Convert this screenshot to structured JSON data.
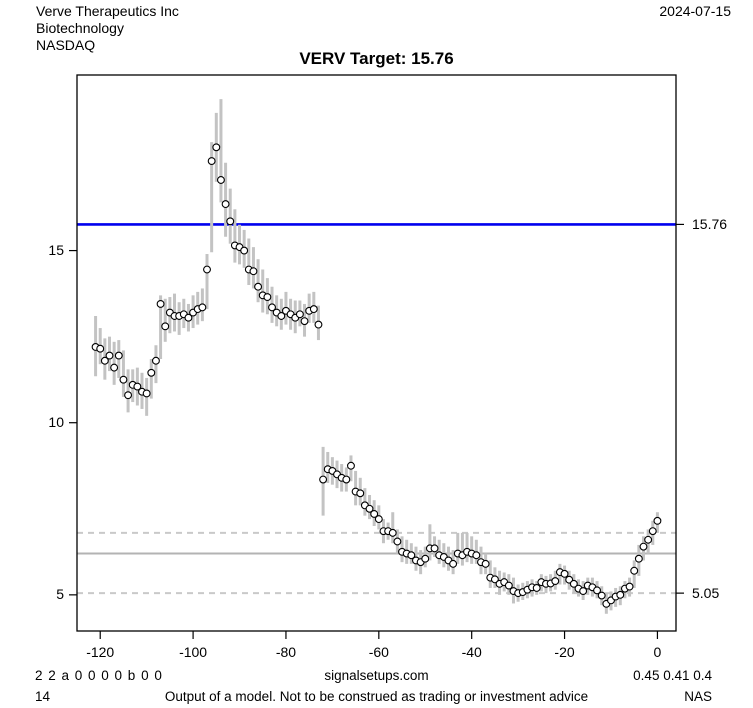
{
  "header": {
    "company": "Verve Therapeutics Inc",
    "sector": "Biotechnology",
    "exchange": "NASDAQ",
    "date": "2024-07-15"
  },
  "title": "VERV Target: 15.76",
  "footer": {
    "row1_left": "2 2 a 0 0 0 0 b 0 0",
    "row1_center": "signalsetups.com",
    "row1_right": "0.45 0.41 0.4",
    "row2_left": "14",
    "row2_center": "Output of a model. Not to be construed as trading or investment advice",
    "row2_right": "NAS"
  },
  "axes": {
    "x_ticks": [
      -120,
      -100,
      -80,
      -60,
      -40,
      -20,
      0
    ],
    "y_ticks": [
      5,
      10,
      15
    ],
    "right_labels": [
      {
        "value": 15.76,
        "label": "15.76"
      },
      {
        "value": 5.05,
        "label": "5.05"
      }
    ]
  },
  "colors": {
    "target_line": "#0000ee",
    "bar": "#c3c3c3",
    "marker_fill": "#ffffff",
    "marker_stroke": "#000000",
    "solid_ref": "#b3b3b3",
    "dashed_ref": "#c9c9c9",
    "axis": "#000000"
  },
  "chart_data": {
    "type": "hlc_bars",
    "title": "VERV Target: 15.76",
    "xlabel": "",
    "ylabel": "",
    "x_range": [
      -125,
      4
    ],
    "y_range": [
      3.95,
      20.1
    ],
    "grid": false,
    "reference_lines": [
      {
        "name": "target",
        "value": 15.76,
        "style": "solid",
        "color": "blue",
        "label": "15.76"
      },
      {
        "name": "upper-band",
        "value": 6.8,
        "style": "dashed",
        "color": "gray",
        "label": ""
      },
      {
        "name": "mean",
        "value": 6.2,
        "style": "solid",
        "color": "gray",
        "label": ""
      },
      {
        "name": "lower-band",
        "value": 5.05,
        "style": "dashed",
        "color": "gray",
        "label": "5.05"
      }
    ],
    "point_format": [
      "day",
      "low",
      "close",
      "high"
    ],
    "points": [
      [
        -121,
        11.35,
        12.2,
        13.1
      ],
      [
        -120,
        11.7,
        12.15,
        12.75
      ],
      [
        -119,
        11.25,
        11.8,
        12.45
      ],
      [
        -118,
        11.5,
        11.95,
        12.5
      ],
      [
        -117,
        11.1,
        11.6,
        12.35
      ],
      [
        -116,
        11.3,
        11.95,
        12.4
      ],
      [
        -115,
        10.75,
        11.25,
        12.1
      ],
      [
        -114,
        10.3,
        10.8,
        11.55
      ],
      [
        -113,
        10.6,
        11.1,
        11.55
      ],
      [
        -112,
        10.5,
        11.05,
        11.6
      ],
      [
        -111,
        10.4,
        10.9,
        11.45
      ],
      [
        -110,
        10.2,
        10.85,
        11.3
      ],
      [
        -109,
        10.7,
        11.45,
        11.85
      ],
      [
        -108,
        11.15,
        11.8,
        12.25
      ],
      [
        -107,
        11.85,
        13.45,
        13.7
      ],
      [
        -106,
        12.35,
        12.8,
        13.6
      ],
      [
        -105,
        12.6,
        13.2,
        13.65
      ],
      [
        -104,
        12.65,
        13.1,
        13.75
      ],
      [
        -103,
        12.55,
        13.1,
        13.5
      ],
      [
        -102,
        12.75,
        13.15,
        13.6
      ],
      [
        -101,
        12.65,
        13.05,
        13.45
      ],
      [
        -100,
        12.75,
        13.2,
        13.7
      ],
      [
        -99,
        12.85,
        13.3,
        13.8
      ],
      [
        -98,
        12.95,
        13.35,
        13.9
      ],
      [
        -97,
        13.3,
        14.45,
        14.9
      ],
      [
        -96,
        14.95,
        17.6,
        18.15
      ],
      [
        -95,
        17.0,
        18.0,
        19.0
      ],
      [
        -94,
        16.4,
        17.05,
        19.4
      ],
      [
        -93,
        15.4,
        16.35,
        17.55
      ],
      [
        -92,
        15.2,
        15.85,
        16.8
      ],
      [
        -91,
        14.65,
        15.15,
        16.2
      ],
      [
        -90,
        14.6,
        15.1,
        15.75
      ],
      [
        -89,
        14.5,
        15.0,
        15.6
      ],
      [
        -88,
        14.0,
        14.45,
        15.35
      ],
      [
        -87,
        13.9,
        14.4,
        15.1
      ],
      [
        -86,
        13.5,
        13.95,
        14.75
      ],
      [
        -85,
        13.2,
        13.7,
        14.45
      ],
      [
        -84,
        13.15,
        13.65,
        14.2
      ],
      [
        -83,
        12.9,
        13.35,
        13.95
      ],
      [
        -82,
        12.8,
        13.2,
        13.7
      ],
      [
        -81,
        12.7,
        13.1,
        13.6
      ],
      [
        -80,
        12.85,
        13.25,
        13.8
      ],
      [
        -79,
        12.7,
        13.15,
        13.6
      ],
      [
        -78,
        12.6,
        13.05,
        13.55
      ],
      [
        -77,
        12.8,
        13.15,
        13.55
      ],
      [
        -76,
        12.5,
        12.95,
        13.45
      ],
      [
        -75,
        12.9,
        13.25,
        13.75
      ],
      [
        -74,
        12.9,
        13.3,
        13.8
      ],
      [
        -73,
        12.4,
        12.85,
        13.4
      ],
      [
        -72,
        7.3,
        8.35,
        9.3
      ],
      [
        -71,
        8.25,
        8.65,
        9.15
      ],
      [
        -70,
        8.2,
        8.6,
        9.0
      ],
      [
        -69,
        8.1,
        8.5,
        8.9
      ],
      [
        -68,
        8.0,
        8.4,
        8.8
      ],
      [
        -67,
        8.0,
        8.35,
        8.7
      ],
      [
        -66,
        8.3,
        8.75,
        9.05
      ],
      [
        -65,
        7.6,
        8.0,
        8.6
      ],
      [
        -64,
        7.6,
        7.95,
        8.4
      ],
      [
        -63,
        7.3,
        7.6,
        8.1
      ],
      [
        -62,
        7.2,
        7.5,
        7.9
      ],
      [
        -61,
        7.0,
        7.35,
        7.75
      ],
      [
        -60,
        6.9,
        7.2,
        7.6
      ],
      [
        -59,
        6.5,
        6.85,
        7.2
      ],
      [
        -58,
        6.6,
        6.85,
        7.1
      ],
      [
        -57,
        6.5,
        6.8,
        7.4
      ],
      [
        -56,
        6.2,
        6.55,
        6.9
      ],
      [
        -55,
        5.95,
        6.25,
        6.7
      ],
      [
        -54,
        5.9,
        6.2,
        6.6
      ],
      [
        -53,
        5.9,
        6.15,
        6.5
      ],
      [
        -52,
        5.7,
        6.0,
        6.4
      ],
      [
        -51,
        5.6,
        5.95,
        6.3
      ],
      [
        -50,
        5.8,
        6.05,
        6.4
      ],
      [
        -49,
        6.0,
        6.35,
        7.05
      ],
      [
        -48,
        6.1,
        6.35,
        6.7
      ],
      [
        -47,
        5.9,
        6.15,
        6.6
      ],
      [
        -46,
        5.8,
        6.1,
        6.5
      ],
      [
        -45,
        5.7,
        6.0,
        6.4
      ],
      [
        -44,
        5.6,
        5.9,
        6.3
      ],
      [
        -43,
        5.9,
        6.2,
        6.8
      ],
      [
        -42,
        5.85,
        6.15,
        6.8
      ],
      [
        -41,
        5.95,
        6.25,
        6.8
      ],
      [
        -40,
        5.9,
        6.2,
        6.7
      ],
      [
        -39,
        5.9,
        6.15,
        6.6
      ],
      [
        -38,
        5.6,
        5.95,
        6.4
      ],
      [
        -37,
        5.6,
        5.9,
        6.2
      ],
      [
        -36,
        5.2,
        5.5,
        6.0
      ],
      [
        -35,
        5.2,
        5.45,
        5.8
      ],
      [
        -34,
        5.0,
        5.32,
        5.7
      ],
      [
        -33,
        5.1,
        5.37,
        5.65
      ],
      [
        -32,
        5.0,
        5.27,
        5.6
      ],
      [
        -31,
        4.75,
        5.11,
        5.5
      ],
      [
        -30,
        4.8,
        5.05,
        5.3
      ],
      [
        -29,
        4.85,
        5.08,
        5.35
      ],
      [
        -28,
        4.9,
        5.15,
        5.4
      ],
      [
        -27,
        4.95,
        5.22,
        5.45
      ],
      [
        -26,
        5.0,
        5.2,
        5.4
      ],
      [
        -25,
        5.1,
        5.37,
        5.6
      ],
      [
        -24,
        5.05,
        5.32,
        5.55
      ],
      [
        -23,
        5.1,
        5.33,
        5.6
      ],
      [
        -22,
        5.15,
        5.4,
        5.7
      ],
      [
        -21,
        5.3,
        5.66,
        5.9
      ],
      [
        -20,
        5.3,
        5.61,
        5.85
      ],
      [
        -19,
        5.15,
        5.44,
        5.7
      ],
      [
        -18,
        5.05,
        5.32,
        5.6
      ],
      [
        -17,
        4.95,
        5.18,
        5.45
      ],
      [
        -16,
        4.85,
        5.11,
        5.4
      ],
      [
        -15,
        5.0,
        5.27,
        5.5
      ],
      [
        -14,
        4.95,
        5.22,
        5.5
      ],
      [
        -13,
        4.9,
        5.13,
        5.4
      ],
      [
        -12,
        4.7,
        4.98,
        5.25
      ],
      [
        -11,
        4.45,
        4.74,
        5.05
      ],
      [
        -10,
        4.55,
        4.84,
        5.1
      ],
      [
        -9,
        4.65,
        4.95,
        5.2
      ],
      [
        -8,
        4.7,
        5.0,
        5.25
      ],
      [
        -7,
        4.9,
        5.18,
        5.4
      ],
      [
        -6,
        4.95,
        5.24,
        5.5
      ],
      [
        -5,
        5.2,
        5.7,
        6.0
      ],
      [
        -4,
        5.55,
        6.05,
        6.45
      ],
      [
        -3,
        6.0,
        6.4,
        6.7
      ],
      [
        -2,
        6.2,
        6.6,
        6.9
      ],
      [
        -1,
        6.45,
        6.85,
        7.15
      ],
      [
        0,
        6.8,
        7.15,
        7.4
      ]
    ]
  }
}
